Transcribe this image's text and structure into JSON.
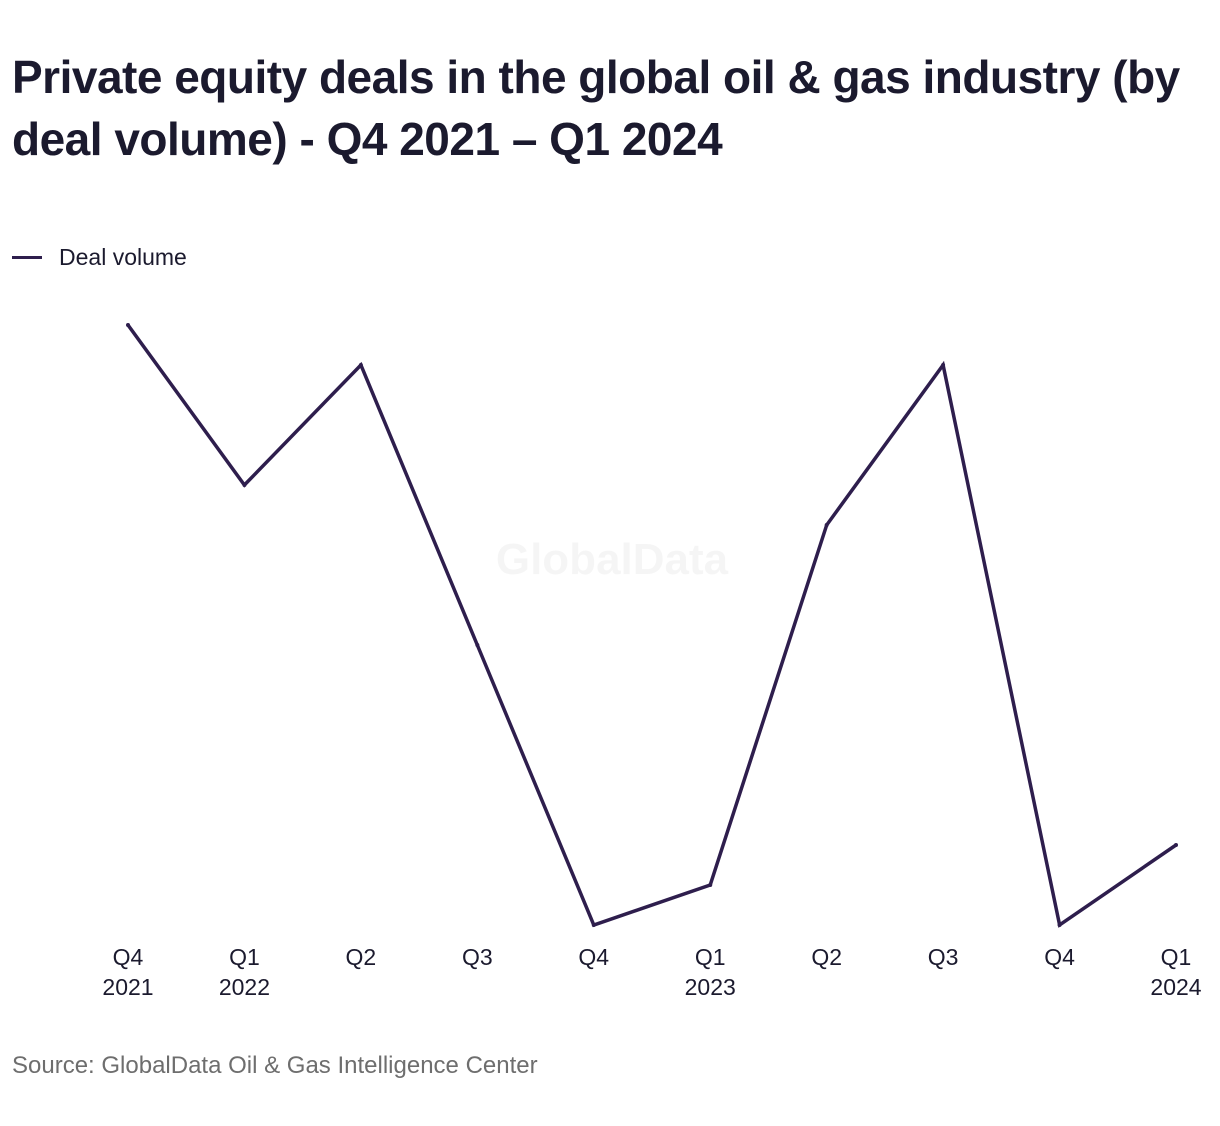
{
  "chart_data": {
    "type": "line",
    "title": "Private equity deals in the global oil & gas industry (by deal volume) - Q4 2021 – Q1 2024",
    "xlabel": "",
    "ylabel": "",
    "categories": [
      {
        "quarter": "Q4",
        "year": "2021"
      },
      {
        "quarter": "Q1",
        "year": "2022"
      },
      {
        "quarter": "Q2",
        "year": ""
      },
      {
        "quarter": "Q3",
        "year": ""
      },
      {
        "quarter": "Q4",
        "year": ""
      },
      {
        "quarter": "Q1",
        "year": "2023"
      },
      {
        "quarter": "Q2",
        "year": ""
      },
      {
        "quarter": "Q3",
        "year": ""
      },
      {
        "quarter": "Q4",
        "year": ""
      },
      {
        "quarter": "Q1",
        "year": "2024"
      }
    ],
    "series": [
      {
        "name": "Deal volume",
        "color": "#2e1e4d",
        "values": [
          15,
          11,
          14,
          7,
          0,
          1,
          10,
          14,
          0,
          2
        ]
      }
    ],
    "ylim": [
      0,
      15
    ],
    "grid": false,
    "legend_position": "top-left",
    "watermark": "GlobalData"
  },
  "source": "Source: GlobalData Oil & Gas Intelligence Center"
}
